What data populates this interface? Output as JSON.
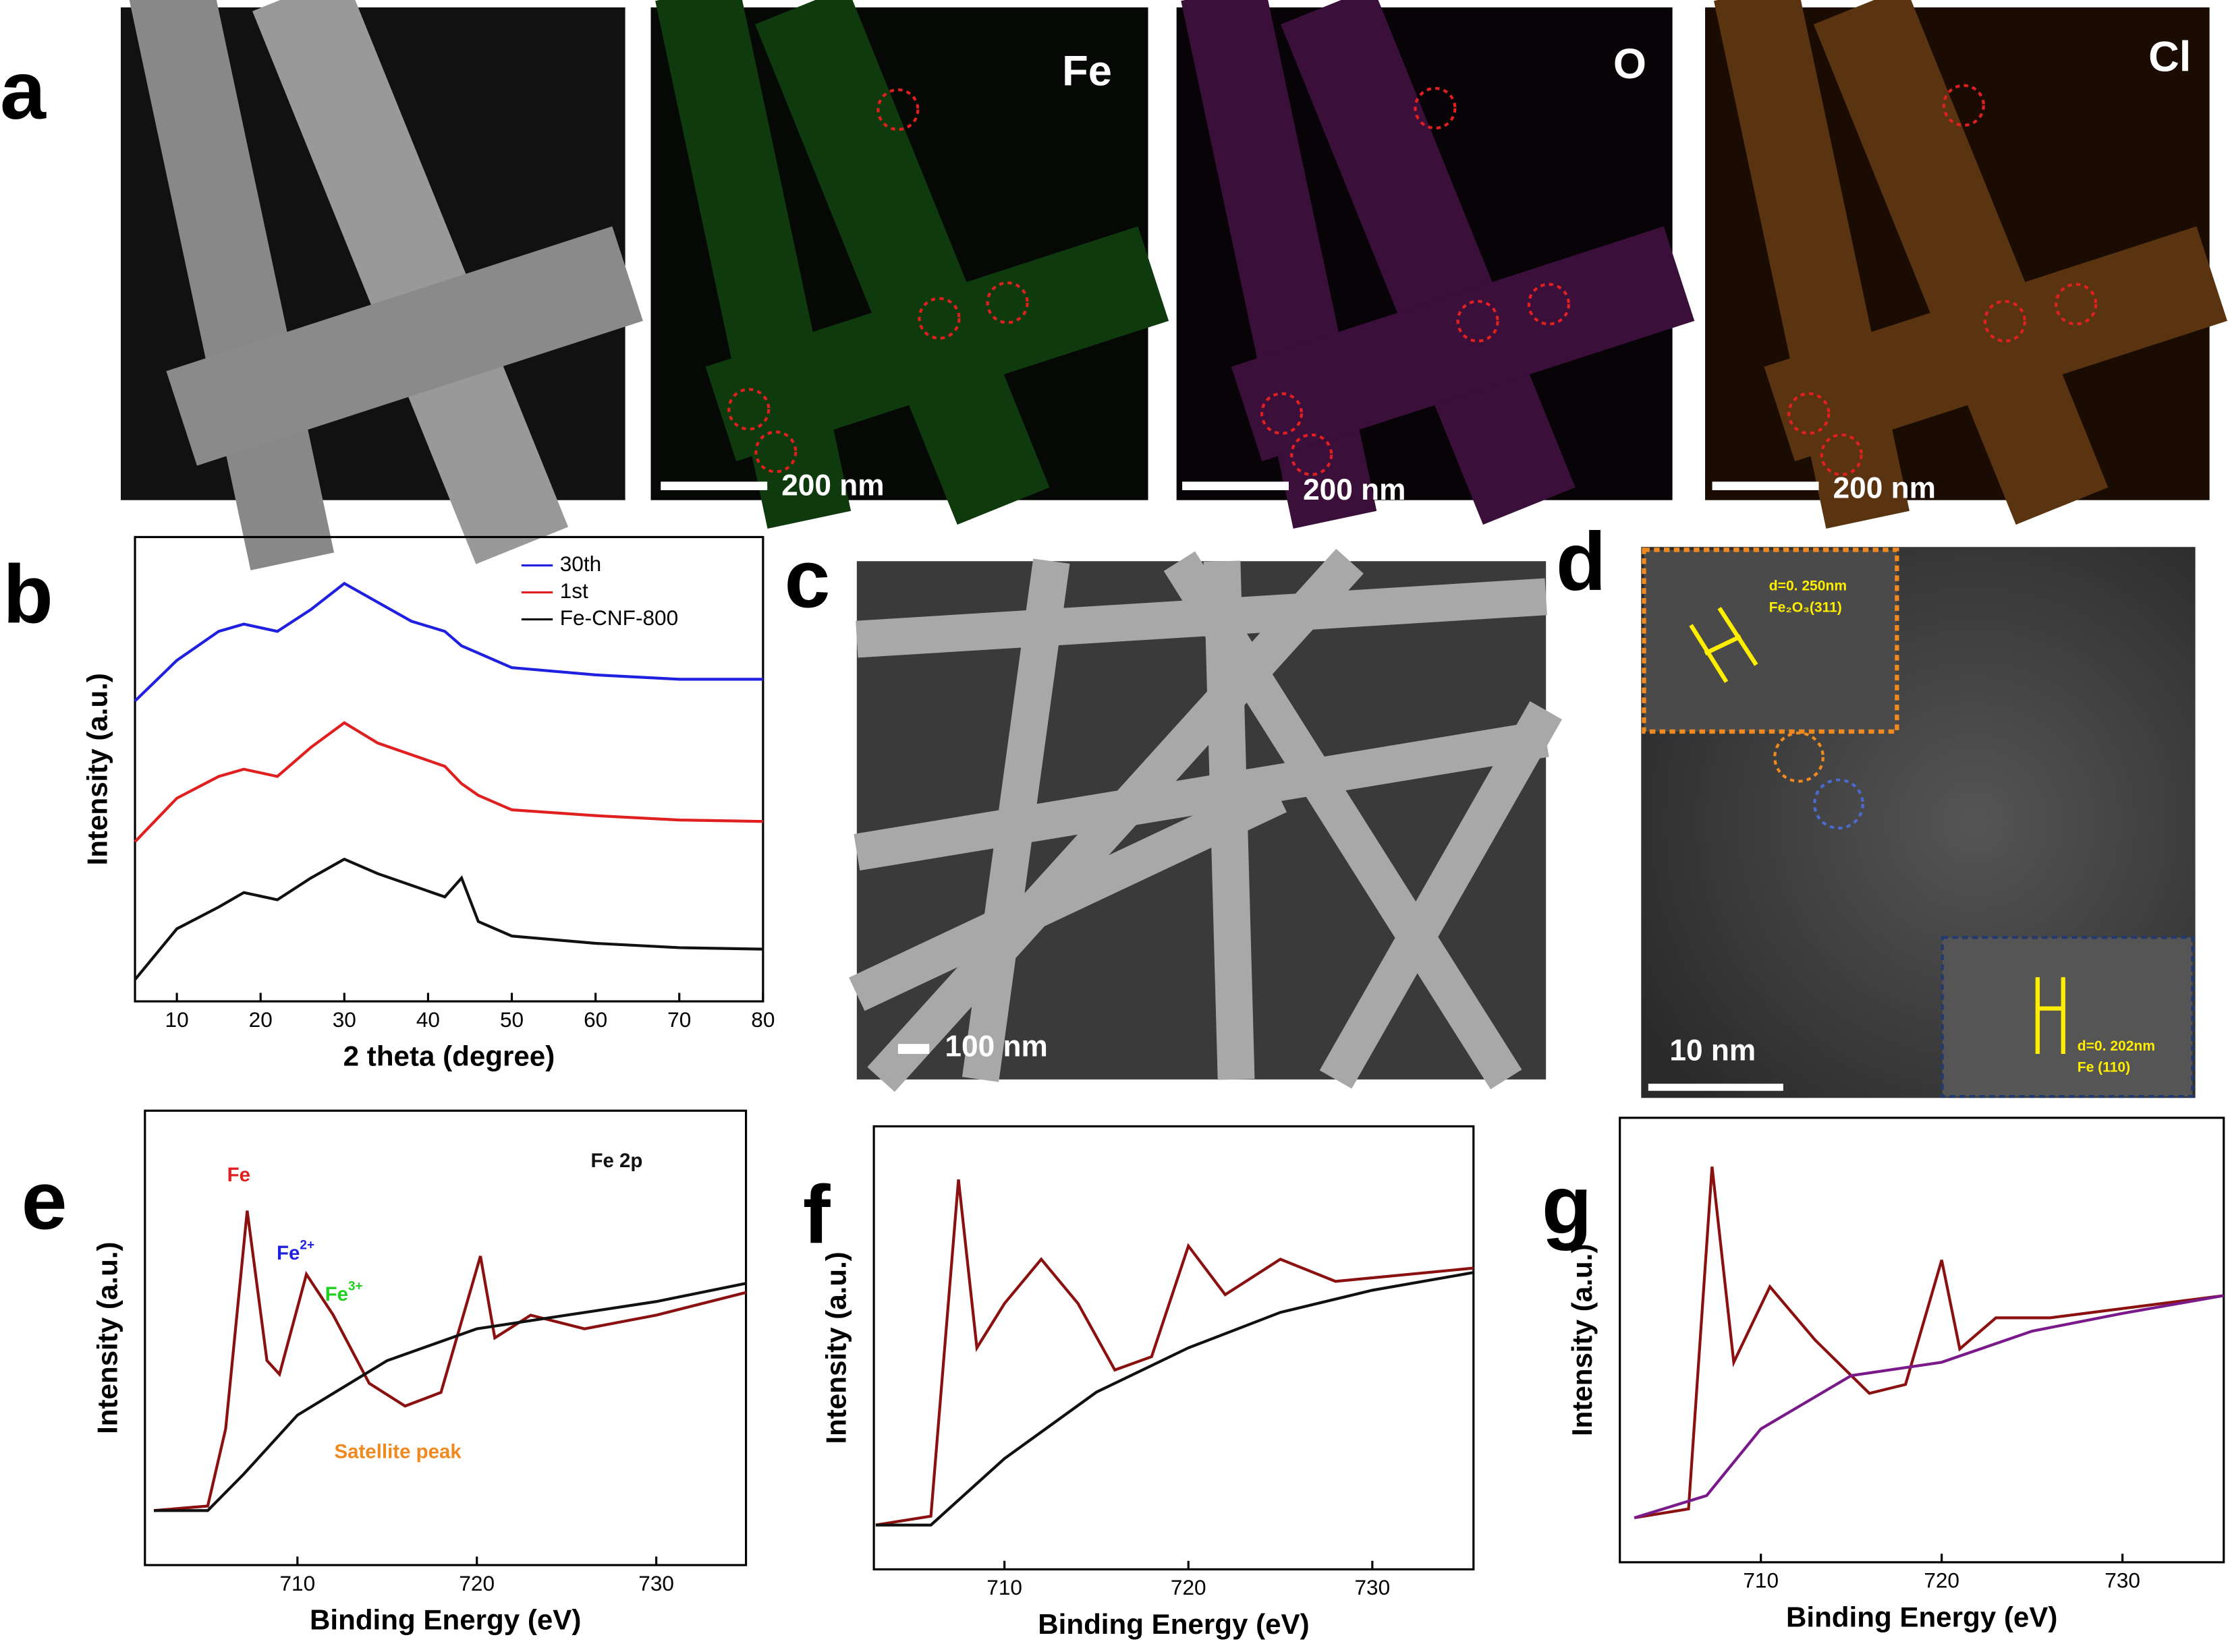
{
  "figure": {
    "panel_labels": [
      "a",
      "b",
      "c",
      "d",
      "e",
      "f",
      "g"
    ]
  },
  "images": {
    "a": {
      "maps": [
        "Fe",
        "O",
        "Cl"
      ],
      "scale_bar": "200 nm"
    },
    "c": {
      "scale_bar": "100 nm"
    },
    "d": {
      "inset1": {
        "spacing": "d=0. 250nm",
        "plane": "Fe₂O₃(311)"
      },
      "inset2": {
        "spacing": "d=0. 202nm",
        "plane": "Fe (110)"
      },
      "scale_bar": "10 nm"
    }
  },
  "chart_data": [
    {
      "type": "line",
      "xlabel": "2 theta (degree)",
      "ylabel": "Intensity (a.u.)",
      "xlim": [
        5,
        80
      ],
      "ylim": [
        0,
        3.2
      ],
      "xticks": [
        10,
        20,
        30,
        40,
        50,
        60,
        70,
        80
      ],
      "x": [
        5,
        10,
        15,
        18,
        22,
        26,
        30,
        34,
        38,
        42,
        44,
        46,
        50,
        60,
        70,
        80
      ],
      "legend": "upper right",
      "series": [
        {
          "name": "30th",
          "color": "#2020e0",
          "values": [
            2.07,
            2.35,
            2.55,
            2.6,
            2.55,
            2.7,
            2.88,
            2.75,
            2.62,
            2.55,
            2.45,
            2.4,
            2.3,
            2.25,
            2.22,
            2.22
          ]
        },
        {
          "name": "1st",
          "color": "#e02020",
          "values": [
            1.1,
            1.4,
            1.55,
            1.6,
            1.55,
            1.75,
            1.92,
            1.78,
            1.7,
            1.62,
            1.5,
            1.42,
            1.32,
            1.28,
            1.25,
            1.24
          ]
        },
        {
          "name": "Fe-CNF-800",
          "color": "#111111",
          "values": [
            0.15,
            0.5,
            0.65,
            0.75,
            0.7,
            0.85,
            0.98,
            0.88,
            0.8,
            0.72,
            0.85,
            0.55,
            0.45,
            0.4,
            0.37,
            0.36
          ]
        }
      ]
    },
    {
      "type": "line",
      "xlabel": "Binding Energy (eV)",
      "ylabel": "Intensity (a.u.)",
      "xlim": [
        701.5,
        735
      ],
      "ylim": [
        0,
        1
      ],
      "xticks": [
        710,
        720,
        730
      ],
      "annotations": [
        {
          "text": "Fe",
          "color": "#e02020"
        },
        {
          "text": "Fe",
          "sup": "2+",
          "color": "#2020e0"
        },
        {
          "text": "Fe",
          "sup": "3+",
          "color": "#20d020"
        },
        {
          "text": "Fe 2p",
          "color": "#111111"
        },
        {
          "text": "Satellite peak",
          "color": "#f08a20"
        }
      ],
      "series": [
        {
          "color": "#8b1010",
          "x": [
            702,
            705,
            706,
            707.2,
            708.3,
            709,
            710.5,
            712,
            714,
            716,
            718,
            720.2,
            721,
            723,
            726,
            730,
            735
          ],
          "values": [
            0.12,
            0.13,
            0.3,
            0.78,
            0.45,
            0.42,
            0.64,
            0.55,
            0.4,
            0.35,
            0.38,
            0.68,
            0.5,
            0.55,
            0.52,
            0.55,
            0.6
          ]
        },
        {
          "color": "#111111",
          "x": [
            702,
            705,
            707,
            710,
            715,
            720,
            725,
            730,
            735
          ],
          "values": [
            0.12,
            0.12,
            0.2,
            0.33,
            0.45,
            0.52,
            0.55,
            0.58,
            0.62
          ]
        }
      ]
    },
    {
      "type": "line",
      "xlabel": "Binding Energy (eV)",
      "ylabel": "Intensity (a.u.)",
      "xlim": [
        702.9,
        735.5
      ],
      "ylim": [
        0,
        1
      ],
      "xticks": [
        710,
        720,
        730
      ],
      "series": [
        {
          "color": "#8b1010",
          "x": [
            703,
            706,
            707.5,
            708.5,
            710,
            712,
            714,
            716,
            718,
            720,
            722,
            725,
            728,
            735.5
          ],
          "values": [
            0.1,
            0.12,
            0.88,
            0.5,
            0.6,
            0.7,
            0.6,
            0.45,
            0.48,
            0.73,
            0.62,
            0.7,
            0.65,
            0.68
          ]
        },
        {
          "color": "#111111",
          "x": [
            703,
            706,
            710,
            715,
            720,
            725,
            730,
            735.5
          ],
          "values": [
            0.1,
            0.1,
            0.25,
            0.4,
            0.5,
            0.58,
            0.63,
            0.67
          ]
        }
      ]
    },
    {
      "type": "line",
      "xlabel": "Binding Energy (eV)",
      "ylabel": "Intensity (a.u.)",
      "xlim": [
        702.2,
        735.6
      ],
      "ylim": [
        0,
        1
      ],
      "xticks": [
        710,
        720,
        730
      ],
      "series": [
        {
          "color": "#8b1010",
          "x": [
            703,
            706,
            707.3,
            708.5,
            710.5,
            713,
            716,
            718,
            720,
            721,
            723,
            726,
            735.6
          ],
          "values": [
            0.1,
            0.12,
            0.89,
            0.45,
            0.62,
            0.5,
            0.38,
            0.4,
            0.68,
            0.48,
            0.55,
            0.55,
            0.6
          ]
        },
        {
          "color": "#7a1a8a",
          "x": [
            703,
            707,
            710,
            715,
            720,
            725,
            730,
            735.6
          ],
          "values": [
            0.1,
            0.15,
            0.3,
            0.42,
            0.45,
            0.52,
            0.56,
            0.6
          ]
        }
      ]
    }
  ]
}
